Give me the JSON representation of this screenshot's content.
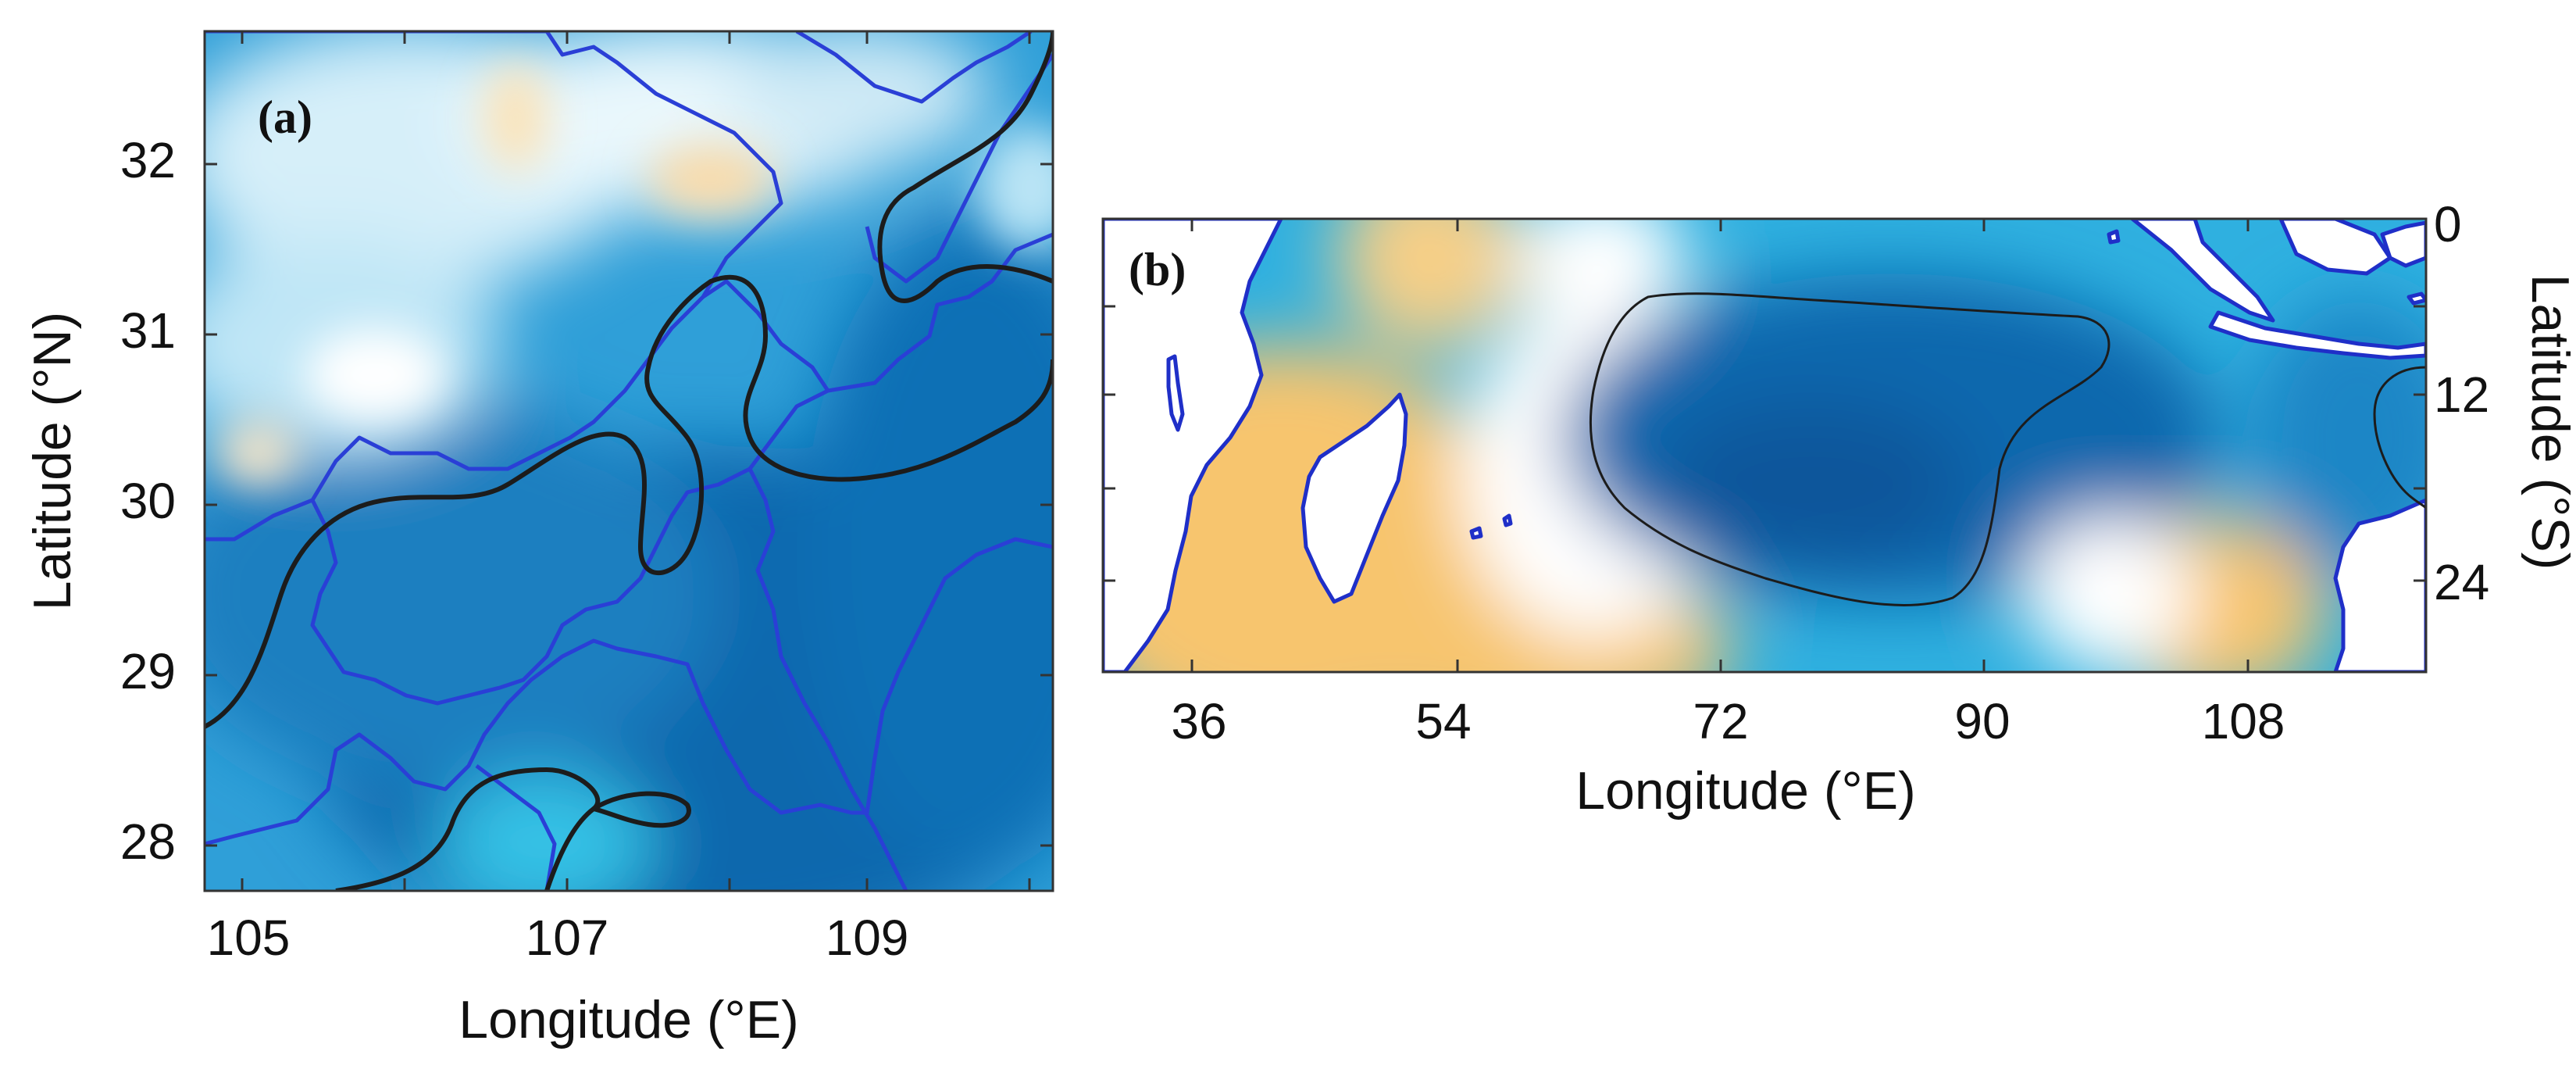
{
  "figure": {
    "palette": {
      "deep_blue": "#0b67ad",
      "mid_blue": "#2f9fd8",
      "light_blue": "#bfe6f6",
      "white": "#ffffff",
      "orange": "#f7c56e",
      "land_outline": "#1f2fc8",
      "contour_line": "#1c1c1c"
    }
  },
  "panel_a": {
    "label": "(a)",
    "xlabel": "Longitude (°E)",
    "ylabel": "Latitude (°N)",
    "xticks": [
      "105",
      "107",
      "109"
    ],
    "yticks": [
      "28",
      "29",
      "30",
      "31",
      "32"
    ]
  },
  "panel_b": {
    "label": "(b)",
    "xlabel": "Longitude (°E)",
    "ylabel": "Latitude (°S)",
    "xticks": [
      "36",
      "54",
      "72",
      "90",
      "108"
    ],
    "yticks": [
      "0",
      "12",
      "24"
    ]
  },
  "map_data": {
    "panel_a": {
      "lon_range": [
        104.7,
        110.3
      ],
      "lat_range": [
        27.7,
        32.7
      ],
      "gridlines": false
    },
    "panel_b": {
      "lon_range": [
        29,
        120
      ],
      "lat_range": [
        0,
        29
      ],
      "lat_axis_side": "right",
      "gridlines": false
    }
  }
}
